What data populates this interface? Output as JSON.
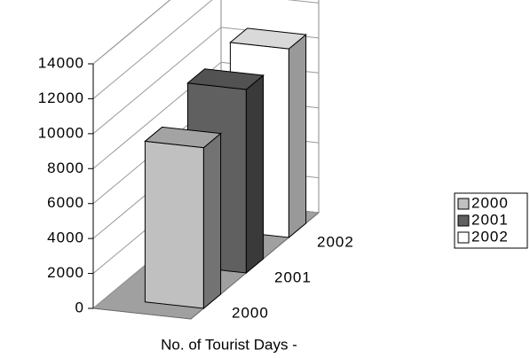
{
  "chart_data": {
    "type": "bar3d",
    "categories": [
      "No. of  Tourist Days -"
    ],
    "series": [
      {
        "name": "2000",
        "color": "#c0c0c0",
        "values": [
          9200
        ]
      },
      {
        "name": "2001",
        "color": "#606060",
        "values": [
          10500
        ]
      },
      {
        "name": "2002",
        "color": "#ffffff",
        "values": [
          10800
        ]
      }
    ],
    "ylim": [
      0,
      14000
    ],
    "yticks": [
      0,
      2000,
      4000,
      6000,
      8000,
      10000,
      12000,
      14000
    ],
    "grid": true,
    "legend": "right"
  }
}
